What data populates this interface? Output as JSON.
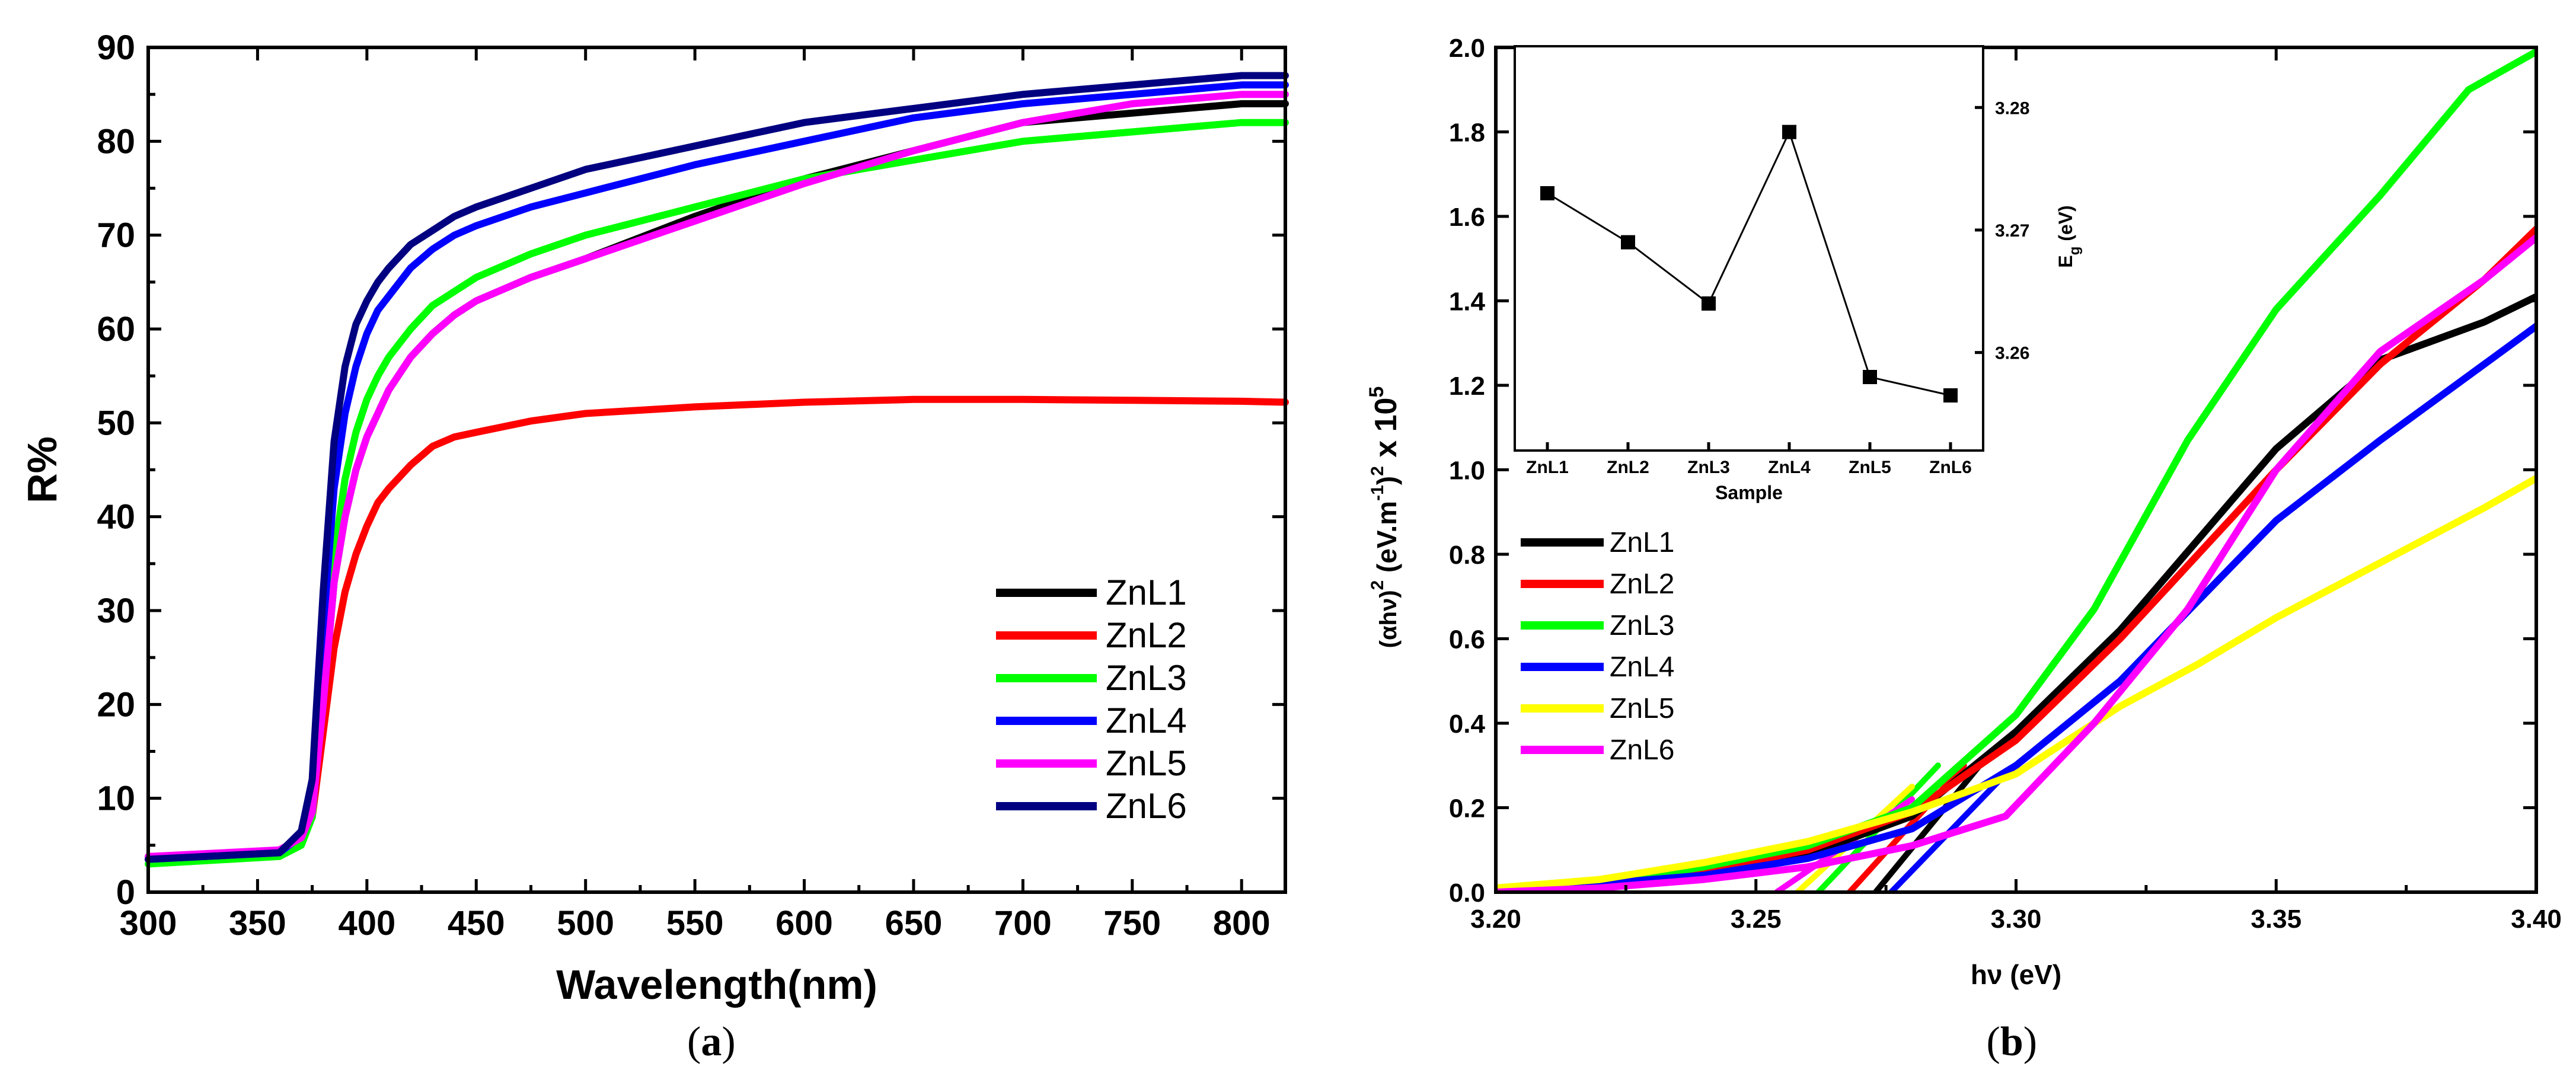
{
  "chart_data": [
    {
      "id": "a",
      "type": "line",
      "panel_label_prefix": "(",
      "panel_label_letter": "a",
      "panel_label_suffix": ")",
      "xlabel": "Wavelength(nm)",
      "ylabel": "R%",
      "xlim": [
        300,
        820
      ],
      "ylim": [
        0,
        90
      ],
      "xticks": [
        "300",
        "350",
        "400",
        "450",
        "500",
        "550",
        "600",
        "650",
        "700",
        "750",
        "800"
      ],
      "xtick_values": [
        300,
        350,
        400,
        450,
        500,
        550,
        600,
        650,
        700,
        750,
        800
      ],
      "yticks": [
        "0",
        "10",
        "20",
        "30",
        "40",
        "50",
        "60",
        "70",
        "80",
        "90"
      ],
      "ytick_values": [
        0,
        10,
        20,
        30,
        40,
        50,
        60,
        70,
        80,
        90
      ],
      "legend_position": "bottom-right",
      "series": [
        {
          "name": "ZnL1",
          "color": "#000000",
          "x": [
            300,
            360,
            370,
            375,
            380,
            385,
            390,
            395,
            400,
            405,
            410,
            420,
            430,
            440,
            450,
            475,
            500,
            550,
            600,
            650,
            700,
            750,
            800,
            820
          ],
          "y": [
            3.5,
            4.2,
            5.5,
            8,
            20,
            33,
            40,
            45,
            48.5,
            51,
            53.5,
            57,
            59.5,
            61.5,
            63,
            65.5,
            67.5,
            72,
            76,
            79,
            82,
            83,
            84,
            84
          ]
        },
        {
          "name": "ZnL2",
          "color": "#ff0000",
          "x": [
            300,
            360,
            370,
            375,
            380,
            385,
            390,
            395,
            400,
            405,
            410,
            420,
            430,
            440,
            450,
            475,
            500,
            550,
            600,
            650,
            700,
            750,
            800,
            820
          ],
          "y": [
            3.5,
            4.2,
            5.5,
            8,
            17,
            26,
            32,
            36,
            39,
            41.5,
            43,
            45.5,
            47.5,
            48.5,
            49,
            50.2,
            51,
            51.7,
            52.2,
            52.5,
            52.5,
            52.4,
            52.3,
            52.2
          ]
        },
        {
          "name": "ZnL3",
          "color": "#00ff00",
          "x": [
            300,
            360,
            370,
            375,
            380,
            385,
            390,
            395,
            400,
            405,
            410,
            420,
            430,
            440,
            450,
            475,
            500,
            550,
            600,
            650,
            700,
            750,
            800,
            820
          ],
          "y": [
            3,
            3.8,
            5,
            8,
            22,
            36,
            44,
            49,
            52.5,
            55,
            57,
            60,
            62.5,
            64,
            65.5,
            68,
            70,
            73,
            76,
            78,
            80,
            81,
            82,
            82
          ]
        },
        {
          "name": "ZnL4",
          "color": "#0000ff",
          "x": [
            300,
            360,
            370,
            375,
            380,
            385,
            390,
            395,
            400,
            405,
            410,
            420,
            430,
            440,
            450,
            475,
            500,
            550,
            600,
            650,
            700,
            750,
            800,
            820
          ],
          "y": [
            3.5,
            4.2,
            6,
            10,
            28,
            43,
            51,
            56,
            59.5,
            62,
            63.5,
            66.5,
            68.5,
            70,
            71,
            73,
            74.5,
            77.5,
            80,
            82.5,
            84,
            85,
            86,
            86
          ]
        },
        {
          "name": "ZnL5",
          "color": "#ff00ff",
          "x": [
            300,
            360,
            370,
            375,
            380,
            385,
            390,
            395,
            400,
            405,
            410,
            420,
            430,
            440,
            450,
            475,
            500,
            550,
            600,
            650,
            700,
            750,
            800,
            820
          ],
          "y": [
            3.8,
            4.5,
            5.8,
            8.5,
            20,
            33,
            40,
            45,
            48.5,
            51,
            53.5,
            57,
            59.5,
            61.5,
            63,
            65.5,
            67.5,
            71.5,
            75.5,
            79,
            82,
            84,
            85,
            85
          ]
        },
        {
          "name": "ZnL6",
          "color": "#000080",
          "x": [
            300,
            360,
            370,
            375,
            380,
            385,
            390,
            395,
            400,
            405,
            410,
            420,
            430,
            440,
            450,
            475,
            500,
            550,
            600,
            650,
            700,
            750,
            800,
            820
          ],
          "y": [
            3.5,
            4.2,
            6.5,
            12,
            32,
            48,
            56,
            60.5,
            63,
            65,
            66.5,
            69,
            70.5,
            72,
            73,
            75,
            77,
            79.5,
            82,
            83.5,
            85,
            86,
            87,
            87
          ]
        }
      ]
    },
    {
      "id": "b",
      "type": "line",
      "panel_label_prefix": "(",
      "panel_label_letter": "b",
      "panel_label_suffix": ")",
      "xlabel": "hν (eV)",
      "ylabel_base": "(αhν)",
      "ylabel_exp1": "2",
      "ylabel_units": "(eV.m",
      "ylabel_exp2": "-1",
      "ylabel_close": ")",
      "ylabel_exp3": "2",
      "ylabel_times": "x 10",
      "ylabel_exp4": "5",
      "xlim": [
        3.2,
        3.4
      ],
      "ylim": [
        0,
        2.0
      ],
      "xticks": [
        "3.20",
        "3.25",
        "3.30",
        "3.35",
        "3.40"
      ],
      "xtick_values": [
        3.2,
        3.25,
        3.3,
        3.35,
        3.4
      ],
      "yticks": [
        "0.0",
        "0.2",
        "0.4",
        "0.6",
        "0.8",
        "1.0",
        "1.2",
        "1.4",
        "1.6",
        "1.8",
        "2.0"
      ],
      "ytick_values": [
        0,
        0.2,
        0.4,
        0.6,
        0.8,
        1.0,
        1.2,
        1.4,
        1.6,
        1.8,
        2.0
      ],
      "legend_position": "middle-left",
      "series": [
        {
          "name": "ZnL1",
          "color": "#000000",
          "x": [
            3.2,
            3.22,
            3.24,
            3.26,
            3.28,
            3.3,
            3.32,
            3.35,
            3.37,
            3.39,
            3.4
          ],
          "y": [
            0,
            0.02,
            0.05,
            0.09,
            0.18,
            0.38,
            0.62,
            1.05,
            1.26,
            1.35,
            1.41
          ]
        },
        {
          "name": "ZnL2",
          "color": "#ff0000",
          "x": [
            3.2,
            3.22,
            3.24,
            3.26,
            3.28,
            3.3,
            3.32,
            3.35,
            3.37,
            3.39,
            3.4
          ],
          "y": [
            0,
            0.02,
            0.05,
            0.1,
            0.19,
            0.36,
            0.6,
            1.0,
            1.25,
            1.45,
            1.57
          ]
        },
        {
          "name": "ZnL3",
          "color": "#00ff00",
          "x": [
            3.2,
            3.22,
            3.24,
            3.26,
            3.28,
            3.3,
            3.315,
            3.333,
            3.35,
            3.37,
            3.387,
            3.4
          ],
          "y": [
            0,
            0.02,
            0.06,
            0.11,
            0.2,
            0.42,
            0.67,
            1.07,
            1.38,
            1.65,
            1.9,
            1.99
          ]
        },
        {
          "name": "ZnL4",
          "color": "#0000ff",
          "x": [
            3.2,
            3.22,
            3.24,
            3.26,
            3.28,
            3.3,
            3.32,
            3.35,
            3.37,
            3.39,
            3.4
          ],
          "y": [
            0,
            0.02,
            0.04,
            0.08,
            0.15,
            0.3,
            0.5,
            0.88,
            1.07,
            1.25,
            1.34
          ]
        },
        {
          "name": "ZnL5",
          "color": "#ffff00",
          "x": [
            3.2,
            3.22,
            3.24,
            3.26,
            3.28,
            3.3,
            3.32,
            3.335,
            3.35,
            3.37,
            3.39,
            3.4
          ],
          "y": [
            0.01,
            0.03,
            0.07,
            0.12,
            0.19,
            0.28,
            0.44,
            0.54,
            0.65,
            0.78,
            0.91,
            0.98
          ]
        },
        {
          "name": "ZnL6",
          "color": "#ff00ff",
          "x": [
            3.2,
            3.22,
            3.24,
            3.26,
            3.28,
            3.298,
            3.315,
            3.333,
            3.35,
            3.37,
            3.39,
            3.4
          ],
          "y": [
            0,
            0.01,
            0.03,
            0.06,
            0.11,
            0.18,
            0.4,
            0.67,
            1.0,
            1.28,
            1.45,
            1.55
          ]
        }
      ],
      "fit_lines": [
        {
          "name": "ZnL1-fit",
          "color": "#000000",
          "x": [
            3.273,
            3.293
          ],
          "y": [
            0,
            0.3
          ]
        },
        {
          "name": "ZnL2-fit",
          "color": "#ff0000",
          "x": [
            3.268,
            3.29
          ],
          "y": [
            0,
            0.3
          ]
        },
        {
          "name": "ZnL3-fit",
          "color": "#00ff00",
          "x": [
            3.262,
            3.285
          ],
          "y": [
            0,
            0.3
          ]
        },
        {
          "name": "ZnL4-fit",
          "color": "#0000ff",
          "x": [
            3.276,
            3.298
          ],
          "y": [
            0,
            0.28
          ]
        },
        {
          "name": "ZnL5-fit",
          "color": "#ffff00",
          "x": [
            3.258,
            3.28
          ],
          "y": [
            0,
            0.25
          ]
        },
        {
          "name": "ZnL6-fit",
          "color": "#ff00ff",
          "x": [
            3.254,
            3.28
          ],
          "y": [
            0,
            0.22
          ]
        }
      ]
    },
    {
      "id": "b-inset",
      "type": "scatter",
      "xlabel": "Sample",
      "ylabel_main": "E",
      "ylabel_sub": "g",
      "ylabel_unit": "(eV)",
      "categories": [
        "ZnL1",
        "ZnL2",
        "ZnL3",
        "ZnL4",
        "ZnL5",
        "ZnL6"
      ],
      "values": [
        3.273,
        3.269,
        3.264,
        3.278,
        3.258,
        3.2565
      ],
      "ylim": [
        3.252,
        3.285
      ],
      "yticks": [
        "3.26",
        "3.27",
        "3.28"
      ],
      "ytick_values": [
        3.26,
        3.27,
        3.28
      ],
      "color": "#000000"
    }
  ]
}
